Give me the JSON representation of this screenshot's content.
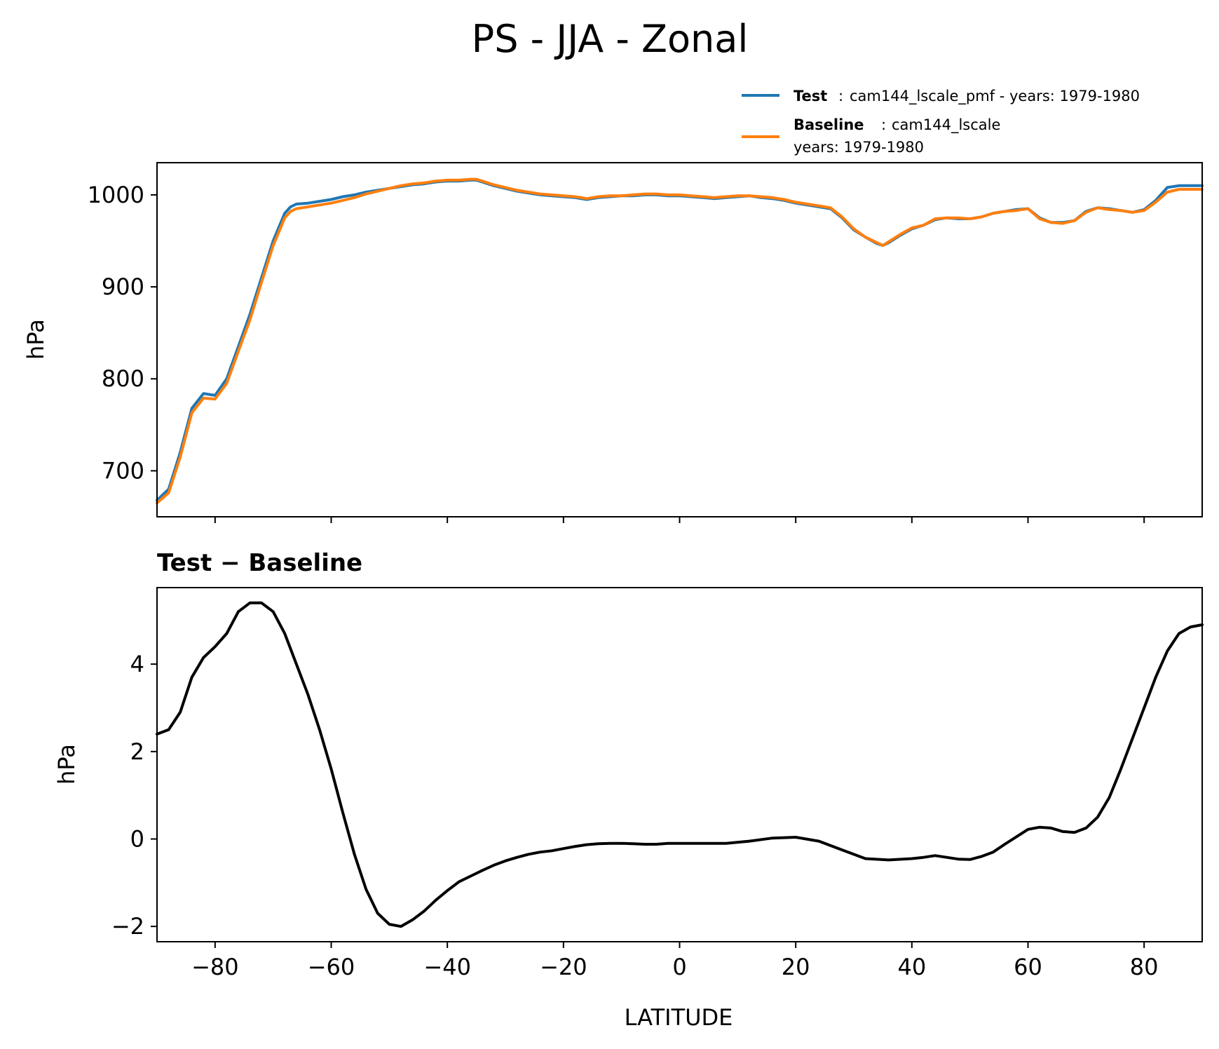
{
  "chart_data": {
    "type": "line",
    "title": "PS - JJA - Zonal",
    "xlabel": "LATITUDE",
    "xlim": [
      -90,
      90
    ],
    "xticks": [
      -80,
      -60,
      -40,
      -20,
      0,
      20,
      40,
      60,
      80
    ],
    "xtick_labels": [
      "−80",
      "−60",
      "−40",
      "−20",
      "0",
      "20",
      "40",
      "60",
      "80"
    ],
    "colors": {
      "test": "#1f77b4",
      "baseline": "#ff7f0e",
      "diff": "#000000"
    },
    "legend": [
      {
        "name": "Test",
        "sep": ":",
        "desc": "cam144_lscale_pmf - years: 1979-1980",
        "color": "#1f77b4"
      },
      {
        "name": "Baseline",
        "sep": ":",
        "desc": "cam144_lscale",
        "desc2": "years: 1979-1980",
        "color": "#ff7f0e"
      }
    ],
    "panels": [
      {
        "ylabel": "hPa",
        "ylim": [
          650,
          1035
        ],
        "yticks": [
          700,
          800,
          900,
          1000
        ],
        "ytick_labels": [
          "700",
          "800",
          "900",
          "1000"
        ],
        "series": [
          {
            "name": "Test",
            "color": "#1f77b4",
            "x": [
              -90,
              -88,
              -86,
              -84,
              -82,
              -80,
              -78,
              -76,
              -74,
              -72,
              -70,
              -68,
              -67,
              -66,
              -64,
              -62,
              -60,
              -58,
              -56,
              -54,
              -52,
              -50,
              -48,
              -46,
              -44,
              -42,
              -40,
              -38,
              -36,
              -35,
              -34,
              -32,
              -30,
              -28,
              -26,
              -24,
              -22,
              -20,
              -18,
              -16,
              -14,
              -12,
              -10,
              -8,
              -6,
              -4,
              -2,
              0,
              2,
              4,
              6,
              8,
              10,
              12,
              14,
              16,
              18,
              20,
              22,
              24,
              26,
              28,
              30,
              32,
              34,
              35,
              36,
              38,
              40,
              42,
              44,
              46,
              48,
              50,
              52,
              54,
              56,
              58,
              60,
              62,
              64,
              66,
              68,
              70,
              72,
              74,
              76,
              78,
              80,
              82,
              84,
              86,
              88,
              90
            ],
            "y": [
              668,
              680,
              720,
              768,
              784,
              782,
              800,
              835,
              870,
              910,
              950,
              980,
              987,
              990,
              991,
              993,
              995,
              998,
              1000,
              1003,
              1005,
              1007,
              1009,
              1011,
              1012,
              1014,
              1015,
              1015,
              1016,
              1016,
              1014,
              1010,
              1007,
              1004,
              1002,
              1000,
              999,
              998,
              997,
              995,
              997,
              998,
              999,
              999,
              1000,
              1000,
              999,
              999,
              998,
              997,
              996,
              997,
              998,
              999,
              997,
              996,
              994,
              991,
              989,
              987,
              985,
              975,
              962,
              954,
              947,
              945,
              948,
              956,
              963,
              967,
              973,
              975,
              974,
              974,
              976,
              980,
              982,
              984,
              985,
              975,
              970,
              970,
              972,
              982,
              986,
              985,
              983,
              981,
              984,
              994,
              1008,
              1010,
              1010,
              1010
            ]
          },
          {
            "name": "Baseline",
            "color": "#ff7f0e",
            "x": [
              -90,
              -88,
              -86,
              -84,
              -82,
              -80,
              -78,
              -76,
              -74,
              -72,
              -70,
              -68,
              -67,
              -66,
              -64,
              -62,
              -60,
              -58,
              -56,
              -54,
              -52,
              -50,
              -48,
              -46,
              -44,
              -42,
              -40,
              -38,
              -36,
              -35,
              -34,
              -32,
              -30,
              -28,
              -26,
              -24,
              -22,
              -20,
              -18,
              -16,
              -14,
              -12,
              -10,
              -8,
              -6,
              -4,
              -2,
              0,
              2,
              4,
              6,
              8,
              10,
              12,
              14,
              16,
              18,
              20,
              22,
              24,
              26,
              28,
              30,
              32,
              34,
              35,
              36,
              38,
              40,
              42,
              44,
              46,
              48,
              50,
              52,
              54,
              56,
              58,
              60,
              62,
              64,
              66,
              68,
              70,
              72,
              74,
              76,
              78,
              80,
              82,
              84,
              86,
              88,
              90
            ],
            "y": [
              665,
              676,
              715,
              763,
              779,
              778,
              795,
              830,
              864,
              905,
              945,
              975,
              982,
              985,
              987,
              989,
              991,
              994,
              997,
              1001,
              1004,
              1007,
              1010,
              1012,
              1013,
              1015,
              1016,
              1016,
              1017,
              1017,
              1015,
              1011,
              1008,
              1005,
              1003,
              1001,
              1000,
              999,
              998,
              996,
              998,
              999,
              999,
              1000,
              1001,
              1001,
              1000,
              1000,
              999,
              998,
              997,
              998,
              999,
              999,
              998,
              997,
              995,
              992,
              990,
              988,
              986,
              976,
              963,
              954,
              948,
              945,
              949,
              957,
              964,
              967,
              974,
              975,
              975,
              974,
              976,
              980,
              982,
              983,
              985,
              974,
              970,
              969,
              972,
              981,
              986,
              984,
              983,
              981,
              983,
              992,
              1003,
              1006,
              1006,
              1006
            ]
          }
        ]
      },
      {
        "title": "Test − Baseline",
        "ylabel": "hPa",
        "ylim": [
          -2.35,
          5.75
        ],
        "yticks": [
          -2,
          0,
          2,
          4
        ],
        "ytick_labels": [
          "−2",
          "0",
          "2",
          "4"
        ],
        "series": [
          {
            "name": "Test - Baseline",
            "color": "#000000",
            "x": [
              -90,
              -88,
              -86,
              -84,
              -82,
              -80,
              -78,
              -76,
              -74,
              -72,
              -70,
              -68,
              -66,
              -64,
              -62,
              -60,
              -58,
              -56,
              -54,
              -52,
              -50,
              -48,
              -46,
              -44,
              -42,
              -40,
              -38,
              -36,
              -34,
              -32,
              -30,
              -28,
              -26,
              -24,
              -22,
              -20,
              -18,
              -16,
              -14,
              -12,
              -10,
              -8,
              -6,
              -4,
              -2,
              0,
              4,
              8,
              12,
              16,
              20,
              24,
              28,
              32,
              36,
              40,
              42,
              44,
              46,
              48,
              50,
              52,
              54,
              56,
              58,
              60,
              62,
              64,
              66,
              68,
              70,
              72,
              74,
              76,
              78,
              80,
              82,
              84,
              86,
              88,
              90
            ],
            "y": [
              2.4,
              2.5,
              2.9,
              3.7,
              4.15,
              4.4,
              4.7,
              5.2,
              5.4,
              5.4,
              5.2,
              4.7,
              4.0,
              3.3,
              2.5,
              1.6,
              0.6,
              -0.35,
              -1.15,
              -1.7,
              -1.95,
              -2.0,
              -1.85,
              -1.65,
              -1.4,
              -1.18,
              -0.98,
              -0.85,
              -0.72,
              -0.6,
              -0.5,
              -0.42,
              -0.35,
              -0.3,
              -0.27,
              -0.22,
              -0.17,
              -0.13,
              -0.11,
              -0.1,
              -0.1,
              -0.11,
              -0.12,
              -0.12,
              -0.1,
              -0.1,
              -0.1,
              -0.1,
              -0.05,
              0.02,
              0.04,
              -0.05,
              -0.25,
              -0.45,
              -0.48,
              -0.45,
              -0.42,
              -0.38,
              -0.42,
              -0.46,
              -0.47,
              -0.4,
              -0.3,
              -0.12,
              0.05,
              0.22,
              0.27,
              0.25,
              0.17,
              0.15,
              0.25,
              0.5,
              0.95,
              1.6,
              2.3,
              3.0,
              3.7,
              4.3,
              4.7,
              4.85,
              4.9
            ]
          }
        ]
      }
    ]
  }
}
